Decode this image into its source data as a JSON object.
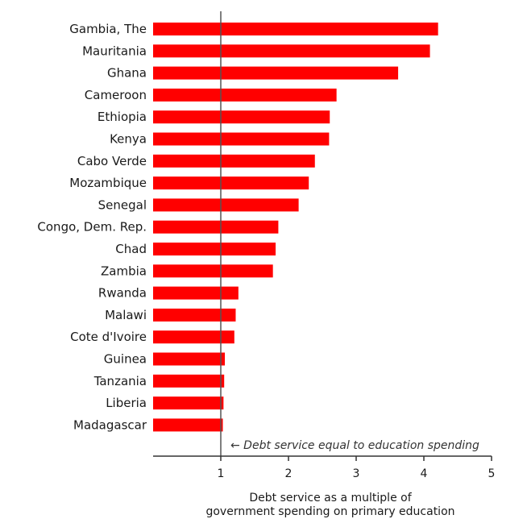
{
  "chart_data": {
    "type": "bar",
    "orientation": "horizontal",
    "categories": [
      "Gambia, The",
      "Mauritania",
      "Ghana",
      "Cameroon",
      "Ethiopia",
      "Kenya",
      "Cabo Verde",
      "Mozambique",
      "Senegal",
      "Congo, Dem. Rep.",
      "Chad",
      "Zambia",
      "Rwanda",
      "Malawi",
      "Cote d'Ivoire",
      "Guinea",
      "Tanzania",
      "Liberia",
      "Madagascar"
    ],
    "values": [
      4.21,
      4.09,
      3.62,
      2.71,
      2.61,
      2.6,
      2.39,
      2.3,
      2.15,
      1.85,
      1.81,
      1.77,
      1.26,
      1.22,
      1.2,
      1.06,
      1.05,
      1.04,
      1.03
    ],
    "xlim": [
      0,
      5
    ],
    "xticks": [
      1,
      2,
      3,
      4,
      5
    ],
    "xtick_labels": [
      "1",
      "2",
      "3",
      "4",
      "5"
    ],
    "xlabel_lines": [
      "Debt service as a multiple of",
      "government spending on primary education"
    ],
    "reference_line": {
      "x": 1,
      "label": "← Debt service equal to education spending"
    },
    "bar_color": "#ff0000",
    "grid": false
  }
}
